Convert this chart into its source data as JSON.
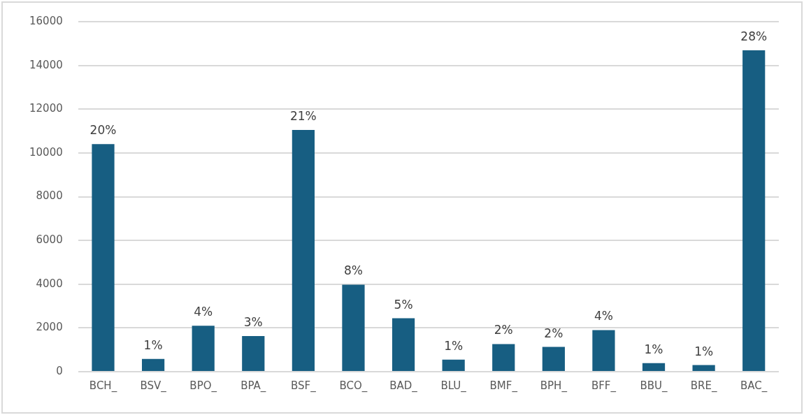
{
  "chart_data": {
    "type": "bar",
    "categories": [
      "BCH_",
      "BSV_",
      "BPO_",
      "BPA_",
      "BSF_",
      "BCO_",
      "BAD_",
      "BLU_",
      "BMF_",
      "BPH_",
      "BFF_",
      "BBU_",
      "BRE_",
      "BAC_"
    ],
    "values": [
      10400,
      580,
      2100,
      1630,
      11050,
      3980,
      2440,
      550,
      1260,
      1130,
      1900,
      390,
      300,
      14690
    ],
    "annotations": [
      {
        "text": "20%",
        "x": "BCH_",
        "y": 10400
      },
      {
        "text": "1%",
        "x": "BSV_",
        "y": 580
      },
      {
        "text": "4%",
        "x": "BPO_",
        "y": 2100
      },
      {
        "text": "3%",
        "x": "BPA_",
        "y": 1630
      },
      {
        "text": "21%",
        "x": "BSF_",
        "y": 11050
      },
      {
        "text": "8%",
        "x": "BCO_",
        "y": 3980
      },
      {
        "text": "5%",
        "x": "BAD_",
        "y": 2440
      },
      {
        "text": "1%",
        "x": "BLU_",
        "y": 550
      },
      {
        "text": "2%",
        "x": "BMF_",
        "y": 1260
      },
      {
        "text": "2%",
        "x": "BPH_",
        "y": 1130
      },
      {
        "text": "4%",
        "x": "BFF_",
        "y": 1900
      },
      {
        "text": "1%",
        "x": "BBU_",
        "y": 390
      },
      {
        "text": "1%",
        "x": "BRE_",
        "y": 300
      },
      {
        "text": "28%",
        "x": "BAC_",
        "y": 14690
      }
    ],
    "color": "#175e82",
    "ylim": [
      0,
      16000
    ],
    "yticks": [
      0,
      2000,
      4000,
      6000,
      8000,
      10000,
      12000,
      14000,
      16000
    ],
    "grid": "y",
    "legend": false
  }
}
